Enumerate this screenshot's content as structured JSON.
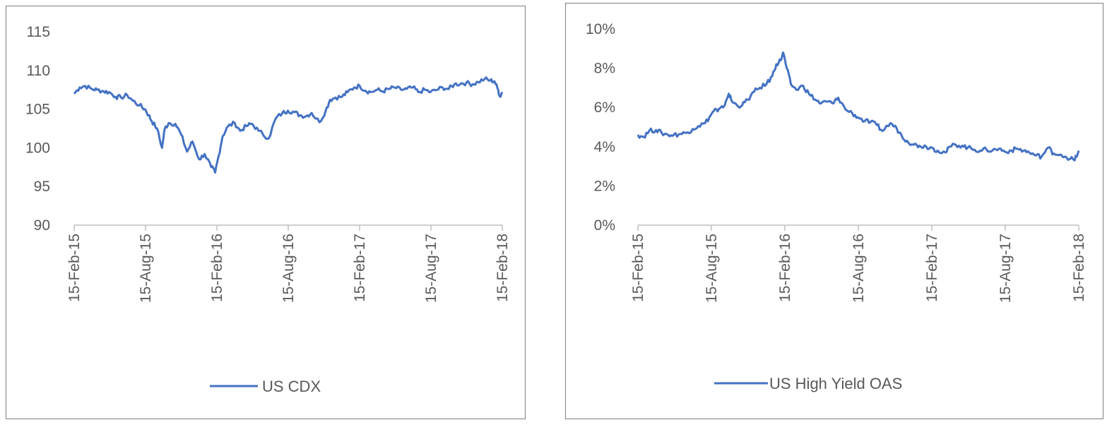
{
  "chart_data": [
    {
      "type": "line",
      "title": "",
      "xlabel": "",
      "ylabel": "",
      "x_tick_labels": [
        "15-Feb-15",
        "15-Aug-15",
        "15-Feb-16",
        "15-Aug-16",
        "15-Feb-17",
        "15-Aug-17",
        "15-Feb-18"
      ],
      "y_tick_labels": [
        "90",
        "95",
        "100",
        "105",
        "110",
        "115"
      ],
      "ylim": [
        90,
        115
      ],
      "xlim": [
        "2015-02-15",
        "2018-02-15"
      ],
      "grid": false,
      "legend_position": "bottom",
      "series": [
        {
          "name": "US CDX",
          "color": "#4472c4",
          "x": [
            "2015-02-15",
            "2015-03-01",
            "2015-03-15",
            "2015-04-01",
            "2015-04-15",
            "2015-05-01",
            "2015-05-15",
            "2015-06-01",
            "2015-06-15",
            "2015-07-01",
            "2015-07-15",
            "2015-08-01",
            "2015-08-15",
            "2015-08-25",
            "2015-09-01",
            "2015-09-15",
            "2015-09-28",
            "2015-10-05",
            "2015-10-15",
            "2015-11-01",
            "2015-11-15",
            "2015-12-01",
            "2015-12-15",
            "2016-01-01",
            "2016-01-15",
            "2016-02-01",
            "2016-02-11",
            "2016-02-20",
            "2016-03-01",
            "2016-03-15",
            "2016-04-01",
            "2016-04-15",
            "2016-05-01",
            "2016-05-15",
            "2016-06-01",
            "2016-06-27",
            "2016-07-15",
            "2016-08-01",
            "2016-08-15",
            "2016-09-01",
            "2016-09-15",
            "2016-10-01",
            "2016-10-15",
            "2016-11-04",
            "2016-11-20",
            "2016-12-01",
            "2016-12-15",
            "2017-01-01",
            "2017-01-15",
            "2017-02-01",
            "2017-02-15",
            "2017-03-01",
            "2017-03-15",
            "2017-04-01",
            "2017-04-15",
            "2017-05-01",
            "2017-05-15",
            "2017-06-01",
            "2017-06-15",
            "2017-07-01",
            "2017-07-15",
            "2017-08-01",
            "2017-08-15",
            "2017-09-01",
            "2017-09-15",
            "2017-10-01",
            "2017-10-15",
            "2017-11-01",
            "2017-11-15",
            "2017-12-01",
            "2017-12-15",
            "2018-01-01",
            "2018-01-15",
            "2018-01-26",
            "2018-02-05",
            "2018-02-09",
            "2018-02-15"
          ],
          "values": [
            107,
            107.8,
            108,
            107.6,
            107.5,
            107.3,
            107.2,
            106.6,
            106.5,
            106.8,
            106.1,
            105.5,
            105,
            104.2,
            103.5,
            102.5,
            100,
            102.5,
            103.2,
            103.1,
            101.8,
            99.5,
            100.8,
            98.5,
            99.2,
            97.5,
            96.8,
            99,
            101.5,
            102.8,
            103.2,
            102.2,
            102.8,
            103.1,
            102.2,
            101.2,
            103.8,
            104.5,
            104.8,
            104.6,
            104.2,
            104.1,
            104.5,
            103.3,
            104.8,
            106.2,
            106.5,
            106.6,
            107.2,
            107.8,
            108,
            107.4,
            107.2,
            107.5,
            107.3,
            107.6,
            107.8,
            107.5,
            107.6,
            107.8,
            107.2,
            107.5,
            107.2,
            107.5,
            107.8,
            107.6,
            108.2,
            108.3,
            108.4,
            108.2,
            108.5,
            108.9,
            108.7,
            108.6,
            107.4,
            106.6,
            107.2
          ]
        }
      ]
    },
    {
      "type": "line",
      "title": "",
      "xlabel": "",
      "ylabel": "",
      "x_tick_labels": [
        "15-Feb-15",
        "15-Aug-15",
        "15-Feb-16",
        "15-Aug-16",
        "15-Feb-17",
        "15-Aug-17",
        "15-Feb-18"
      ],
      "y_tick_labels": [
        "0%",
        "2%",
        "4%",
        "6%",
        "8%",
        "10%"
      ],
      "ylim": [
        0,
        10
      ],
      "xlim": [
        "2015-02-15",
        "2018-02-15"
      ],
      "grid": false,
      "legend_position": "bottom",
      "series": [
        {
          "name": "US High Yield OAS",
          "color": "#4472c4",
          "x": [
            "2015-02-15",
            "2015-03-01",
            "2015-03-15",
            "2015-04-01",
            "2015-04-15",
            "2015-05-01",
            "2015-05-15",
            "2015-06-01",
            "2015-06-15",
            "2015-07-01",
            "2015-07-15",
            "2015-08-01",
            "2015-08-15",
            "2015-08-25",
            "2015-09-01",
            "2015-09-15",
            "2015-09-29",
            "2015-10-07",
            "2015-10-20",
            "2015-11-01",
            "2015-11-15",
            "2015-12-01",
            "2015-12-15",
            "2016-01-01",
            "2016-01-15",
            "2016-01-25",
            "2016-02-05",
            "2016-02-11",
            "2016-02-20",
            "2016-03-01",
            "2016-03-15",
            "2016-04-01",
            "2016-04-15",
            "2016-05-01",
            "2016-05-15",
            "2016-06-01",
            "2016-06-15",
            "2016-06-27",
            "2016-07-15",
            "2016-08-01",
            "2016-08-15",
            "2016-09-01",
            "2016-09-15",
            "2016-10-01",
            "2016-10-15",
            "2016-11-04",
            "2016-11-20",
            "2016-12-01",
            "2016-12-15",
            "2017-01-01",
            "2017-01-15",
            "2017-02-01",
            "2017-02-15",
            "2017-03-01",
            "2017-03-21",
            "2017-04-01",
            "2017-04-15",
            "2017-05-01",
            "2017-05-15",
            "2017-06-01",
            "2017-06-15",
            "2017-07-01",
            "2017-07-15",
            "2017-08-01",
            "2017-08-15",
            "2017-09-01",
            "2017-09-15",
            "2017-10-01",
            "2017-10-15",
            "2017-11-01",
            "2017-11-15",
            "2017-12-01",
            "2017-12-15",
            "2018-01-01",
            "2018-01-26",
            "2018-02-05",
            "2018-02-15"
          ],
          "values": [
            4.6,
            4.5,
            4.8,
            4.85,
            4.7,
            4.6,
            4.6,
            4.65,
            4.7,
            4.9,
            5.05,
            5.2,
            5.6,
            5.9,
            5.8,
            6.0,
            6.7,
            6.3,
            6.1,
            6.1,
            6.4,
            6.8,
            7.0,
            7.2,
            7.6,
            8.2,
            8.4,
            8.8,
            8.0,
            7.2,
            6.9,
            7.1,
            6.7,
            6.4,
            6.2,
            6.3,
            6.2,
            6.5,
            5.9,
            5.7,
            5.5,
            5.3,
            5.25,
            5.1,
            4.8,
            5.2,
            4.9,
            4.6,
            4.3,
            4.1,
            4.05,
            4.0,
            3.95,
            3.8,
            3.7,
            4.0,
            4.1,
            4.05,
            3.95,
            3.85,
            3.8,
            3.85,
            3.8,
            3.9,
            3.75,
            3.8,
            3.9,
            3.8,
            3.7,
            3.55,
            3.5,
            3.95,
            3.65,
            3.6,
            3.4,
            3.3,
            3.8
          ]
        }
      ]
    }
  ]
}
